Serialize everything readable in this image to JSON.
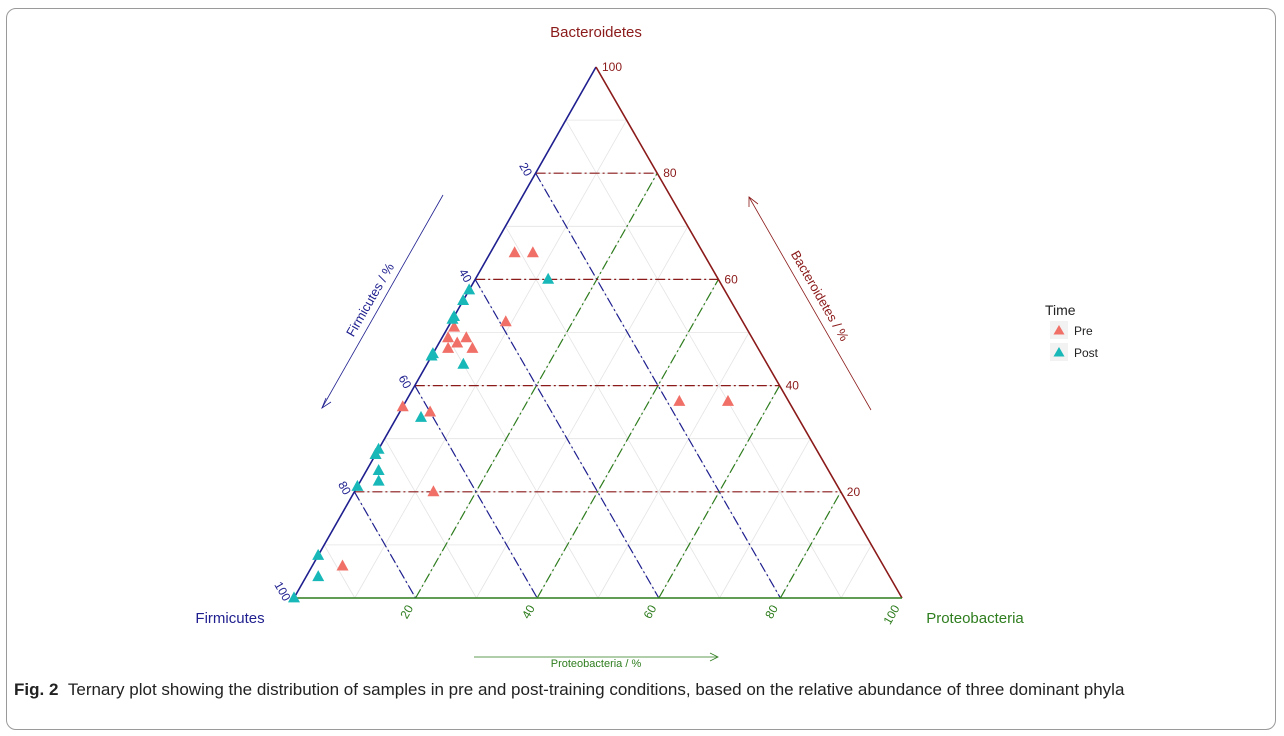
{
  "figure": {
    "label": "Fig. 2",
    "caption": "Ternary plot showing the distribution of samples in pre and post-training conditions, based on the relative abundance of three dominant phyla"
  },
  "chart_data": {
    "type": "scatter",
    "subtype": "ternary",
    "apex_labels": {
      "top": "Bacteroidetes",
      "left": "Firmicutes",
      "right": "Proteobacteria"
    },
    "axis_labels": {
      "firmicutes": "Firmicutes / %",
      "bacteroidetes": "Bacteroidetes / %",
      "proteobacteria": "Proteobacteria / %"
    },
    "ticks": {
      "firmicutes": [
        "20",
        "40",
        "60",
        "80",
        "100"
      ],
      "bacteroidetes": [
        "100",
        "80",
        "60",
        "40",
        "20"
      ],
      "proteobacteria": [
        "20",
        "40",
        "60",
        "80",
        "100"
      ]
    },
    "axis_colors": {
      "firmicutes": "#1f1f8f",
      "bacteroidetes": "#8b1a1a",
      "proteobacteria": "#2e7d1e"
    },
    "grid": true,
    "legend": {
      "title": "Time",
      "position": "right",
      "entries": [
        {
          "name": "Pre",
          "color": "#f07068"
        },
        {
          "name": "Post",
          "color": "#19b8b8"
        }
      ]
    },
    "units": "percent (Firmicutes, Bacteroidetes, Proteobacteria)",
    "series": [
      {
        "name": "Pre",
        "color": "#f07068",
        "points": [
          [
            31,
            65,
            4
          ],
          [
            28,
            65,
            7
          ],
          [
            39,
            52,
            9
          ],
          [
            48,
            51,
            1
          ],
          [
            50,
            49,
            1
          ],
          [
            47,
            49,
            4
          ],
          [
            49,
            48,
            3
          ],
          [
            51,
            47,
            2
          ],
          [
            47,
            47,
            6
          ],
          [
            64,
            36,
            0
          ],
          [
            60,
            35,
            5
          ],
          [
            18,
            37,
            45
          ],
          [
            10,
            37,
            53
          ],
          [
            73,
            27,
            0
          ],
          [
            67,
            20,
            13
          ],
          [
            89,
            6,
            5
          ]
        ]
      },
      {
        "name": "Post",
        "color": "#19b8b8",
        "points": [
          [
            28,
            60,
            12
          ],
          [
            42,
            58,
            0
          ],
          [
            44,
            56,
            0
          ],
          [
            47,
            53,
            0
          ],
          [
            48,
            53,
            0
          ],
          [
            54,
            46,
            0
          ],
          [
            55,
            46,
            0
          ],
          [
            50,
            44,
            6
          ],
          [
            62,
            34,
            4
          ],
          [
            72,
            28,
            0
          ],
          [
            73,
            27,
            0
          ],
          [
            74,
            24,
            2
          ],
          [
            75,
            22,
            3
          ],
          [
            79,
            21,
            0
          ],
          [
            92,
            8,
            0
          ],
          [
            94,
            4,
            2
          ],
          [
            100,
            0,
            0
          ]
        ]
      }
    ]
  }
}
